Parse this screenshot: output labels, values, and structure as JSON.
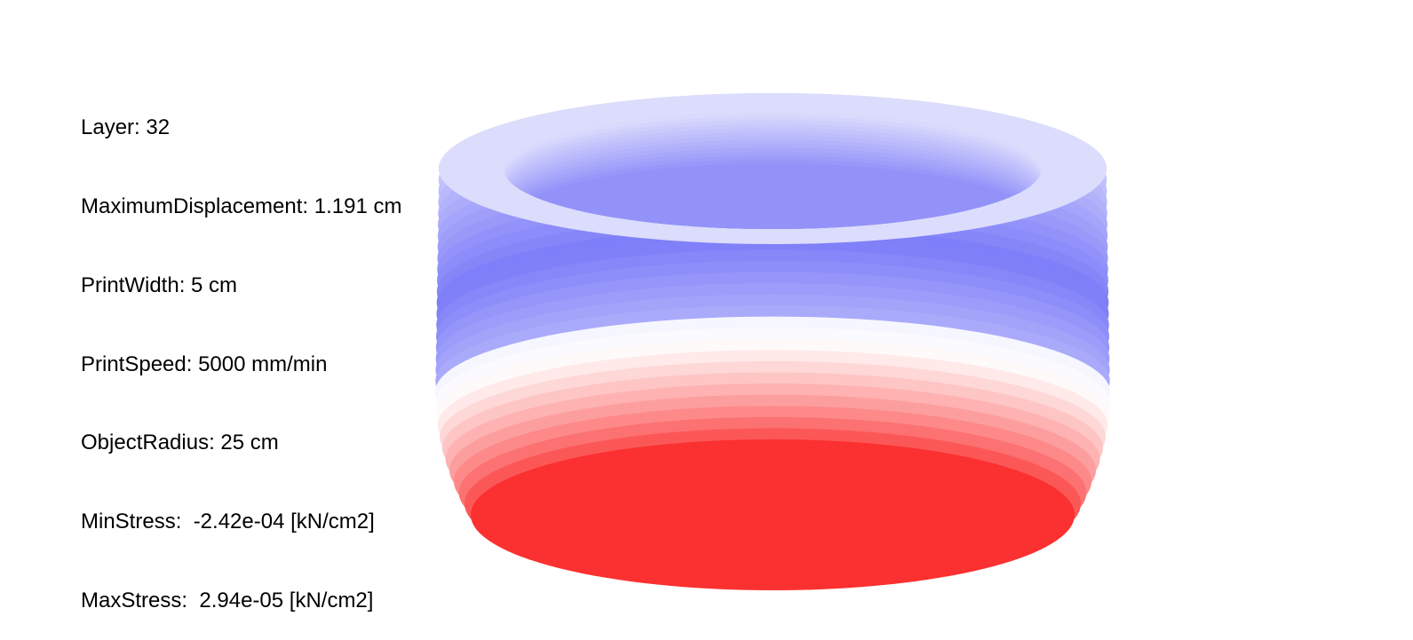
{
  "overlay": {
    "layer": "Layer: 32",
    "max_displacement": "MaximumDisplacement: 1.191 cm",
    "print_width": "PrintWidth: 5 cm",
    "print_speed": "PrintSpeed: 5000 mm/min",
    "object_radius": "ObjectRadius: 25 cm",
    "min_stress": "MinStress:  -2.42e-04 [kN/cm2]",
    "max_stress": "MaxStress:  2.94e-05 [kN/cm2]"
  },
  "model": {
    "type": "printed-ring-stress-view",
    "layer_count": 32,
    "colors": {
      "compression": "#7c7cf9",
      "neutral": "#ffffff",
      "tension": "#fb3030"
    }
  }
}
